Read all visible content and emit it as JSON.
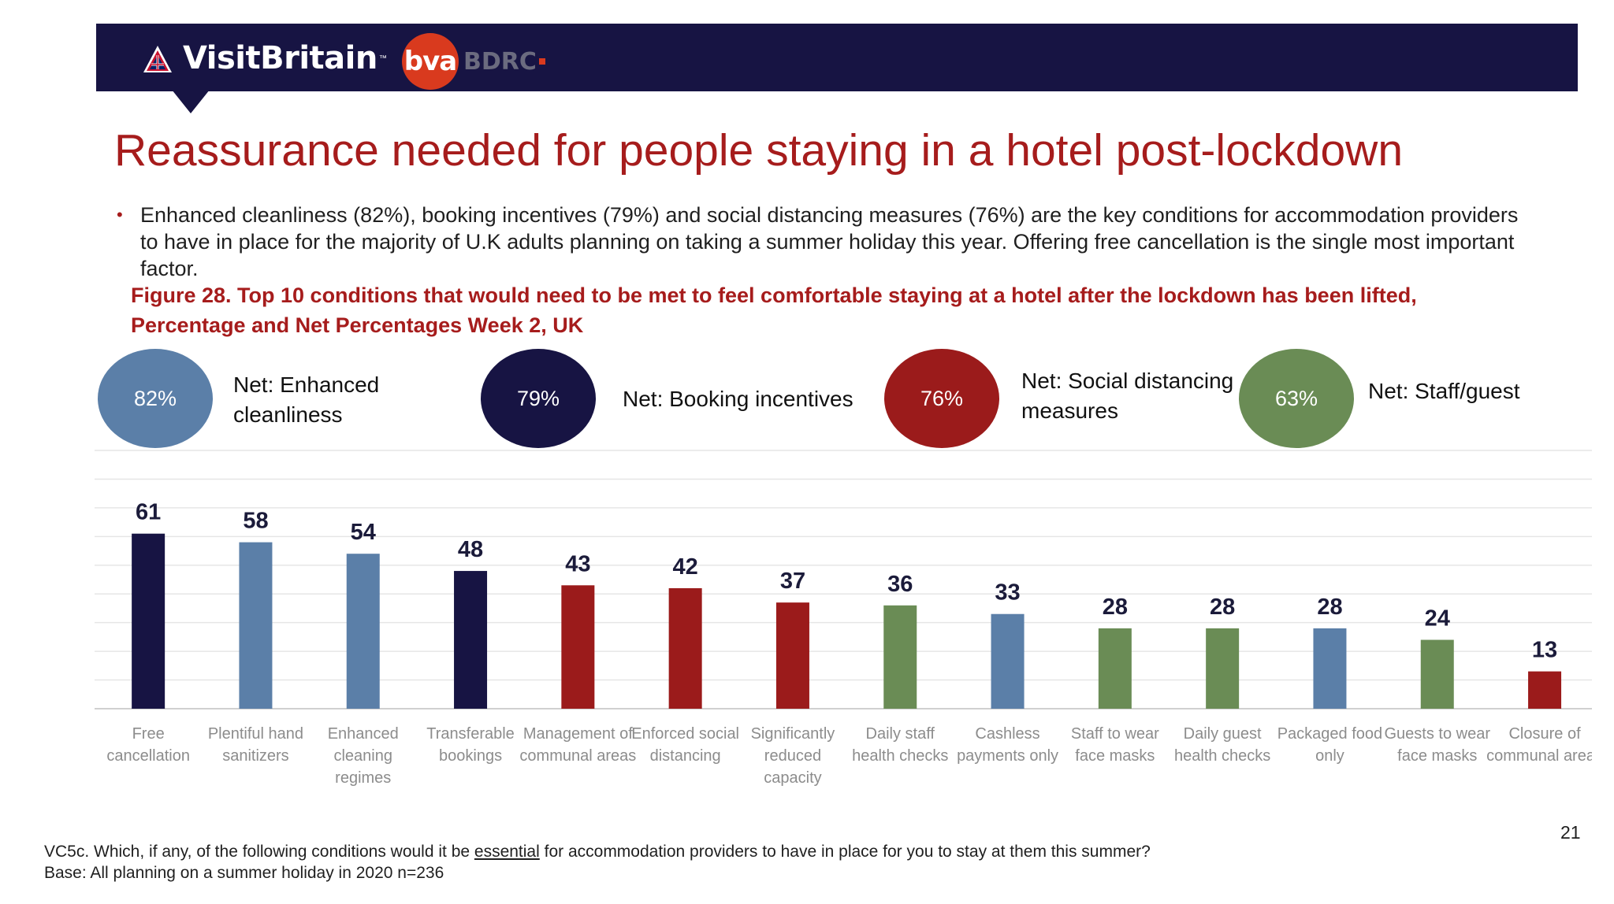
{
  "header": {
    "logo_text": "VisitBritain",
    "logo_tm": "™",
    "partner_logo_circle": "bva",
    "partner_logo_text": "BDRC"
  },
  "title": "Reassurance needed for people staying in a hotel post-lockdown",
  "bullet": "Enhanced cleanliness (82%), booking incentives (79%) and social distancing measures (76%) are the key conditions for accommodation providers to have in place for the majority of U.K adults planning on taking a summer holiday this year.  Offering free cancellation is the single most important factor.",
  "figure_title": "Figure 28. Top 10 conditions that would need to be met to feel comfortable staying at a hotel after the lockdown has been lifted, Percentage and Net Percentages Week 2, UK",
  "nets": [
    {
      "value": "82%",
      "label": "Net: Enhanced cleanliness",
      "color": "#5b7fa8"
    },
    {
      "value": "79%",
      "label": "Net: Booking incentives",
      "color": "#171443"
    },
    {
      "value": "76%",
      "label": "Net: Social distancing measures",
      "color": "#9b1b1b"
    },
    {
      "value": "63%",
      "label": "Net: Staff/guest",
      "color": "#6a8c55"
    }
  ],
  "chart_data": {
    "type": "bar",
    "categories": [
      "Free cancellation",
      "Plentiful hand sanitizers",
      "Enhanced cleaning regimes",
      "Transferable bookings",
      "Management of communal areas",
      "Enforced social distancing",
      "Significantly reduced capacity",
      "Daily staff health checks",
      "Cashless payments only",
      "Staff to wear face masks",
      "Daily guest health checks",
      "Packaged food only",
      "Guests to wear face masks",
      "Closure of communal areas"
    ],
    "values": [
      61,
      58,
      54,
      48,
      43,
      42,
      37,
      36,
      33,
      28,
      28,
      28,
      24,
      13
    ],
    "bar_colors": [
      "#171443",
      "#5b7fa8",
      "#5b7fa8",
      "#171443",
      "#9b1b1b",
      "#9b1b1b",
      "#9b1b1b",
      "#6a8c55",
      "#5b7fa8",
      "#6a8c55",
      "#6a8c55",
      "#5b7fa8",
      "#6a8c55",
      "#9b1b1b"
    ],
    "ylim": [
      0,
      90
    ],
    "grid": true,
    "data_labels": true
  },
  "footnote": {
    "line1_pre": "VC5c. Which, if any, of the following conditions would it be ",
    "line1_underlined": "essential",
    "line1_post": " for accommodation providers to have in place for you to stay at them this summer?",
    "line2": "Base: All planning on a summer holiday in 2020 n=236"
  },
  "page_number": "21"
}
